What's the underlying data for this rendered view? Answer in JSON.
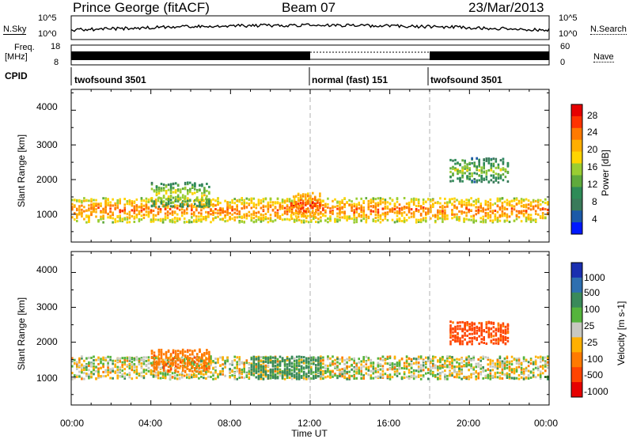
{
  "header": {
    "station": "Prince George (fitACF)",
    "beam": "Beam 07",
    "date": "23/Mar/2013"
  },
  "top_panels": {
    "nsky_label": "N.Sky",
    "nsky_ticks": [
      "10^5",
      "10^0"
    ],
    "nsearch_label": "N.Search",
    "nsearch_ticks": [
      "10^5",
      "10^0"
    ],
    "freq_label_1": "Freq.",
    "freq_label_2": "[MHz]",
    "freq_ticks": [
      "18",
      "8"
    ],
    "nave_label": "Nave",
    "nave_ticks": [
      "60",
      "0"
    ],
    "cpid_label": "CPID",
    "cpid_segments": [
      {
        "text": "twofsound 3501",
        "start_hour": 0
      },
      {
        "text": "normal (fast) 151",
        "start_hour": 12
      },
      {
        "text": "twofsound 3501",
        "start_hour": 18
      }
    ]
  },
  "x_axis": {
    "title": "Time UT",
    "tick_labels": [
      "00:00",
      "04:00",
      "08:00",
      "12:00",
      "16:00",
      "20:00",
      "00:00"
    ]
  },
  "power_colorbar": {
    "title": "Power [dB]",
    "labels": [
      "28",
      "24",
      "20",
      "16",
      "12",
      "8",
      "4"
    ],
    "colors": [
      "#e60000",
      "#ff3300",
      "#ff7a00",
      "#ffae00",
      "#ffd400",
      "#9acd32",
      "#5faa3c",
      "#2e8b57",
      "#3a7a5a",
      "#1c5aa8",
      "#0018ff"
    ]
  },
  "velocity_colorbar": {
    "title": "Velocity [m s-1]",
    "labels": [
      "1000",
      "500",
      "100",
      "25",
      "-25",
      "-100",
      "-500",
      "-1000"
    ],
    "colors": [
      "#1a2fb0",
      "#2e6fb0",
      "#3a8a5a",
      "#55b43c",
      "#c8c8c0",
      "#ffb000",
      "#ff7a00",
      "#ff4400",
      "#e60000"
    ]
  },
  "chart_data": [
    {
      "type": "heatmap",
      "title": "",
      "xlabel": "Time UT",
      "ylabel": "Slant Range [km]",
      "x_ticks": [
        "00:00",
        "04:00",
        "08:00",
        "12:00",
        "16:00",
        "20:00",
        "00:00"
      ],
      "xlim_hours": [
        0,
        24
      ],
      "ylim": [
        200,
        4600
      ],
      "y_ticks": [
        1000,
        2000,
        3000,
        4000
      ],
      "colorbar_label": "Power [dB]",
      "colorbar_ticks": [
        4,
        8,
        12,
        16,
        20,
        24,
        28
      ],
      "vertical_markers_hours": [
        12,
        18
      ],
      "bands": [
        {
          "from_hour": 0,
          "to_hour": 24,
          "center_km": 1150,
          "level_db": 25
        },
        {
          "from_hour": 4,
          "to_hour": 7,
          "center_km": 1600,
          "level_db": 18
        },
        {
          "from_hour": 11,
          "to_hour": 12.5,
          "center_km": 1300,
          "level_db": 28
        },
        {
          "from_hour": 19,
          "to_hour": 22,
          "center_km": 2300,
          "level_db": 16
        }
      ]
    },
    {
      "type": "heatmap",
      "title": "",
      "xlabel": "Time UT",
      "ylabel": "Slant Range [km]",
      "x_ticks": [
        "00:00",
        "04:00",
        "08:00",
        "12:00",
        "16:00",
        "20:00",
        "00:00"
      ],
      "xlim_hours": [
        0,
        24
      ],
      "ylim": [
        200,
        4600
      ],
      "y_ticks": [
        1000,
        2000,
        3000,
        4000
      ],
      "colorbar_label": "Velocity [m s-1]",
      "colorbar_ticks": [
        -1000,
        -500,
        -100,
        -25,
        25,
        100,
        500,
        1000
      ],
      "vertical_markers_hours": [
        12,
        18
      ],
      "bands": [
        {
          "from_hour": 0,
          "to_hour": 24,
          "center_km": 1300,
          "velocity": 0
        },
        {
          "from_hour": 4,
          "to_hour": 7,
          "center_km": 1500,
          "velocity": -400
        },
        {
          "from_hour": 9,
          "to_hour": 12.5,
          "center_km": 1300,
          "velocity": 200
        },
        {
          "from_hour": 19,
          "to_hour": 22,
          "center_km": 2300,
          "velocity": -600
        }
      ]
    }
  ]
}
